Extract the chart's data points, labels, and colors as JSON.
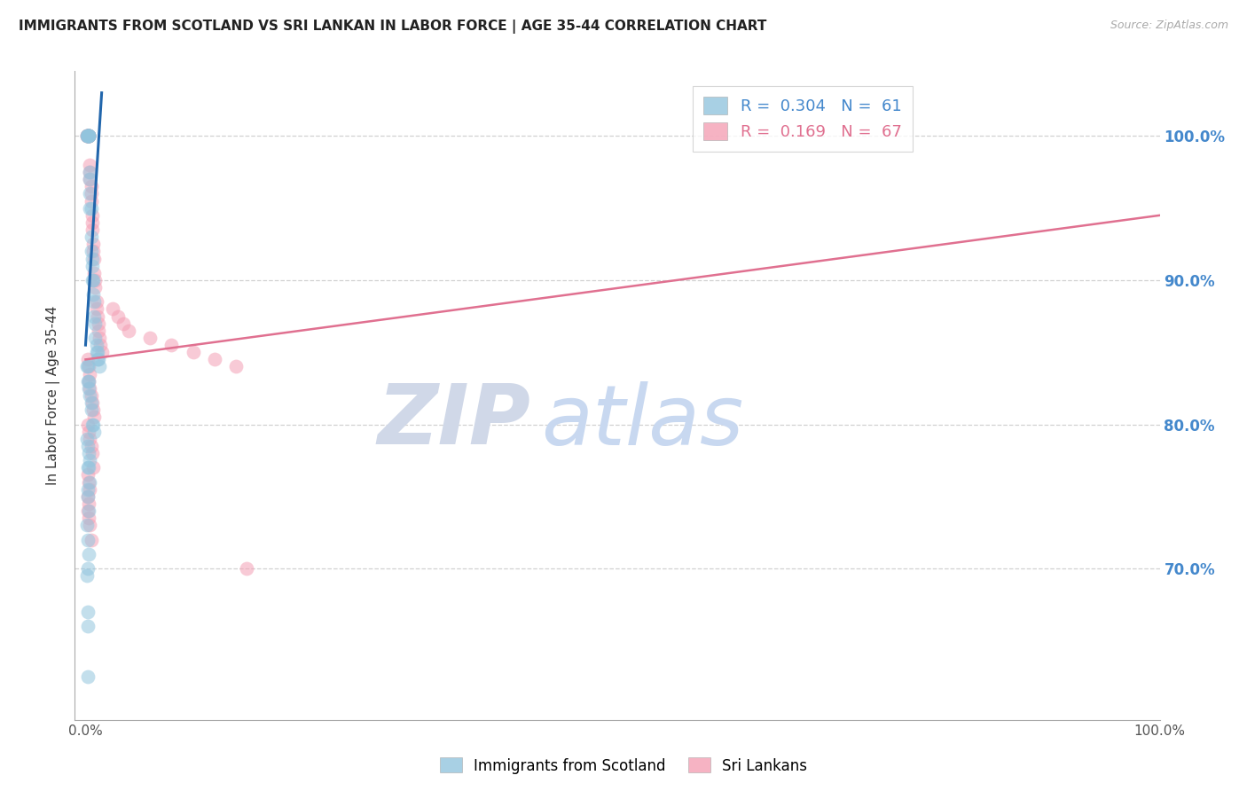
{
  "title": "IMMIGRANTS FROM SCOTLAND VS SRI LANKAN IN LABOR FORCE | AGE 35-44 CORRELATION CHART",
  "source": "Source: ZipAtlas.com",
  "ylabel": "In Labor Force | Age 35-44",
  "xlim": [
    0.0,
    1.0
  ],
  "ylim": [
    0.595,
    1.045
  ],
  "yticks": [
    0.7,
    0.8,
    0.9,
    1.0
  ],
  "ytick_labels": [
    "70.0%",
    "80.0%",
    "90.0%",
    "100.0%"
  ],
  "xticks": [
    0.0,
    0.2,
    0.4,
    0.6,
    0.8,
    1.0
  ],
  "xtick_labels": [
    "0.0%",
    "",
    "",
    "",
    "",
    "100.0%"
  ],
  "scotland_color": "#92c5de",
  "srilanka_color": "#f4a0b5",
  "scotland_line_color": "#2166ac",
  "srilanka_line_color": "#e07090",
  "scotland_R": 0.304,
  "scotland_N": 61,
  "srilanka_R": 0.169,
  "srilanka_N": 67,
  "scotland_x": [
    0.001,
    0.001,
    0.002,
    0.002,
    0.002,
    0.003,
    0.003,
    0.003,
    0.003,
    0.003,
    0.004,
    0.004,
    0.004,
    0.004,
    0.005,
    0.005,
    0.005,
    0.006,
    0.006,
    0.006,
    0.007,
    0.007,
    0.008,
    0.008,
    0.009,
    0.009,
    0.01,
    0.01,
    0.011,
    0.011,
    0.012,
    0.013,
    0.001,
    0.002,
    0.002,
    0.003,
    0.003,
    0.004,
    0.005,
    0.005,
    0.006,
    0.007,
    0.008,
    0.001,
    0.002,
    0.003,
    0.004,
    0.002,
    0.003,
    0.004,
    0.002,
    0.002,
    0.003,
    0.001,
    0.002,
    0.003,
    0.002,
    0.001,
    0.002,
    0.002,
    0.002
  ],
  "scotland_y": [
    1.0,
    1.0,
    1.0,
    1.0,
    1.0,
    1.0,
    1.0,
    1.0,
    1.0,
    1.0,
    0.975,
    0.97,
    0.96,
    0.95,
    0.95,
    0.93,
    0.92,
    0.915,
    0.91,
    0.9,
    0.9,
    0.89,
    0.885,
    0.875,
    0.87,
    0.86,
    0.855,
    0.85,
    0.85,
    0.845,
    0.845,
    0.84,
    0.84,
    0.84,
    0.83,
    0.83,
    0.825,
    0.82,
    0.815,
    0.81,
    0.8,
    0.8,
    0.795,
    0.79,
    0.785,
    0.78,
    0.775,
    0.77,
    0.77,
    0.76,
    0.755,
    0.75,
    0.74,
    0.73,
    0.72,
    0.71,
    0.7,
    0.695,
    0.67,
    0.66,
    0.625
  ],
  "srilanka_x": [
    0.001,
    0.001,
    0.002,
    0.002,
    0.002,
    0.003,
    0.003,
    0.003,
    0.003,
    0.003,
    0.004,
    0.004,
    0.004,
    0.005,
    0.005,
    0.005,
    0.006,
    0.006,
    0.006,
    0.007,
    0.007,
    0.008,
    0.008,
    0.009,
    0.009,
    0.01,
    0.01,
    0.011,
    0.012,
    0.012,
    0.013,
    0.014,
    0.015,
    0.002,
    0.003,
    0.004,
    0.003,
    0.004,
    0.005,
    0.006,
    0.007,
    0.008,
    0.002,
    0.003,
    0.004,
    0.005,
    0.006,
    0.007,
    0.002,
    0.003,
    0.004,
    0.002,
    0.003,
    0.002,
    0.003,
    0.004,
    0.005,
    0.025,
    0.03,
    0.035,
    0.04,
    0.06,
    0.08,
    0.1,
    0.12,
    0.14,
    0.15
  ],
  "srilanka_y": [
    1.0,
    1.0,
    1.0,
    1.0,
    1.0,
    1.0,
    1.0,
    1.0,
    1.0,
    1.0,
    0.98,
    0.975,
    0.97,
    0.965,
    0.96,
    0.955,
    0.945,
    0.94,
    0.935,
    0.925,
    0.92,
    0.915,
    0.905,
    0.9,
    0.895,
    0.885,
    0.88,
    0.875,
    0.87,
    0.865,
    0.86,
    0.855,
    0.85,
    0.845,
    0.84,
    0.835,
    0.83,
    0.825,
    0.82,
    0.815,
    0.81,
    0.805,
    0.8,
    0.795,
    0.79,
    0.785,
    0.78,
    0.77,
    0.765,
    0.76,
    0.755,
    0.75,
    0.745,
    0.74,
    0.735,
    0.73,
    0.72,
    0.88,
    0.875,
    0.87,
    0.865,
    0.86,
    0.855,
    0.85,
    0.845,
    0.84,
    0.7
  ],
  "scotland_line_x": [
    0.0,
    0.015
  ],
  "scotland_line_y": [
    0.855,
    1.03
  ],
  "srilanka_line_x": [
    0.0,
    1.0
  ],
  "srilanka_line_y": [
    0.845,
    0.945
  ],
  "watermark_zip_color": "#d0d8e8",
  "watermark_atlas_color": "#c8d8f0",
  "background_color": "#ffffff"
}
